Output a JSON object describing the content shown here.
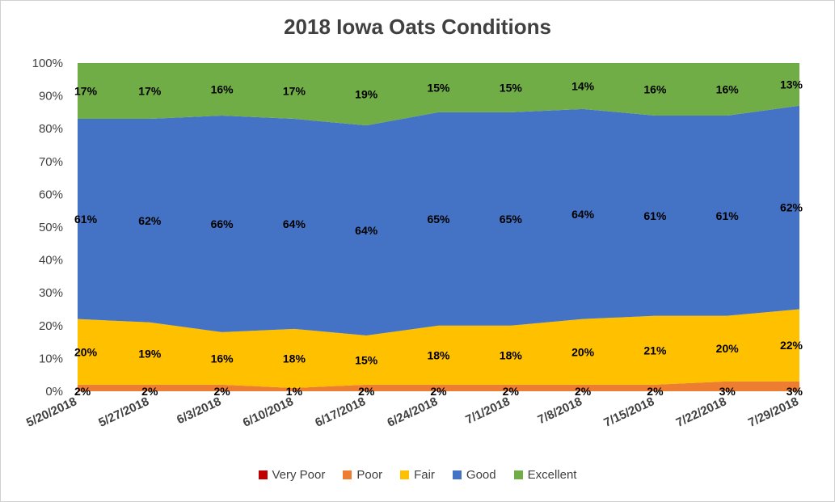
{
  "chart_data": {
    "type": "area",
    "stacked": true,
    "title": "2018 Iowa Oats Conditions",
    "categories": [
      "5/20/2018",
      "5/27/2018",
      "6/3/2018",
      "6/10/2018",
      "6/17/2018",
      "6/24/2018",
      "7/1/2018",
      "7/8/2018",
      "7/15/2018",
      "7/22/2018",
      "7/29/2018"
    ],
    "ylim": [
      0,
      100
    ],
    "y_ticks": [
      "0%",
      "10%",
      "20%",
      "30%",
      "40%",
      "50%",
      "60%",
      "70%",
      "80%",
      "90%",
      "100%"
    ],
    "legend_position": "bottom",
    "series": [
      {
        "name": "Very Poor",
        "color": "#c00000",
        "values": [
          0,
          0,
          0,
          0,
          0,
          0,
          0,
          0,
          0,
          0,
          0
        ],
        "labels": []
      },
      {
        "name": "Poor",
        "color": "#ed7d31",
        "values": [
          2,
          2,
          2,
          1,
          2,
          2,
          2,
          2,
          2,
          3,
          3
        ],
        "labels": [
          "2%",
          "2%",
          "2%",
          "1%",
          "2%",
          "2%",
          "2%",
          "2%",
          "2%",
          "3%",
          "3%"
        ]
      },
      {
        "name": "Fair",
        "color": "#ffc000",
        "values": [
          20,
          19,
          16,
          18,
          15,
          18,
          18,
          20,
          21,
          20,
          22
        ],
        "labels": [
          "20%",
          "19%",
          "16%",
          "18%",
          "15%",
          "18%",
          "18%",
          "20%",
          "21%",
          "20%",
          "22%"
        ]
      },
      {
        "name": "Good",
        "color": "#4472c4",
        "values": [
          61,
          62,
          66,
          64,
          64,
          65,
          65,
          64,
          61,
          61,
          62
        ],
        "labels": [
          "61%",
          "62%",
          "66%",
          "64%",
          "64%",
          "65%",
          "65%",
          "64%",
          "61%",
          "61%",
          "62%"
        ]
      },
      {
        "name": "Excellent",
        "color": "#70ad47",
        "values": [
          17,
          17,
          16,
          17,
          19,
          15,
          15,
          14,
          16,
          16,
          13
        ],
        "labels": [
          "17%",
          "17%",
          "16%",
          "17%",
          "19%",
          "15%",
          "15%",
          "14%",
          "16%",
          "16%",
          "13%"
        ]
      }
    ]
  }
}
